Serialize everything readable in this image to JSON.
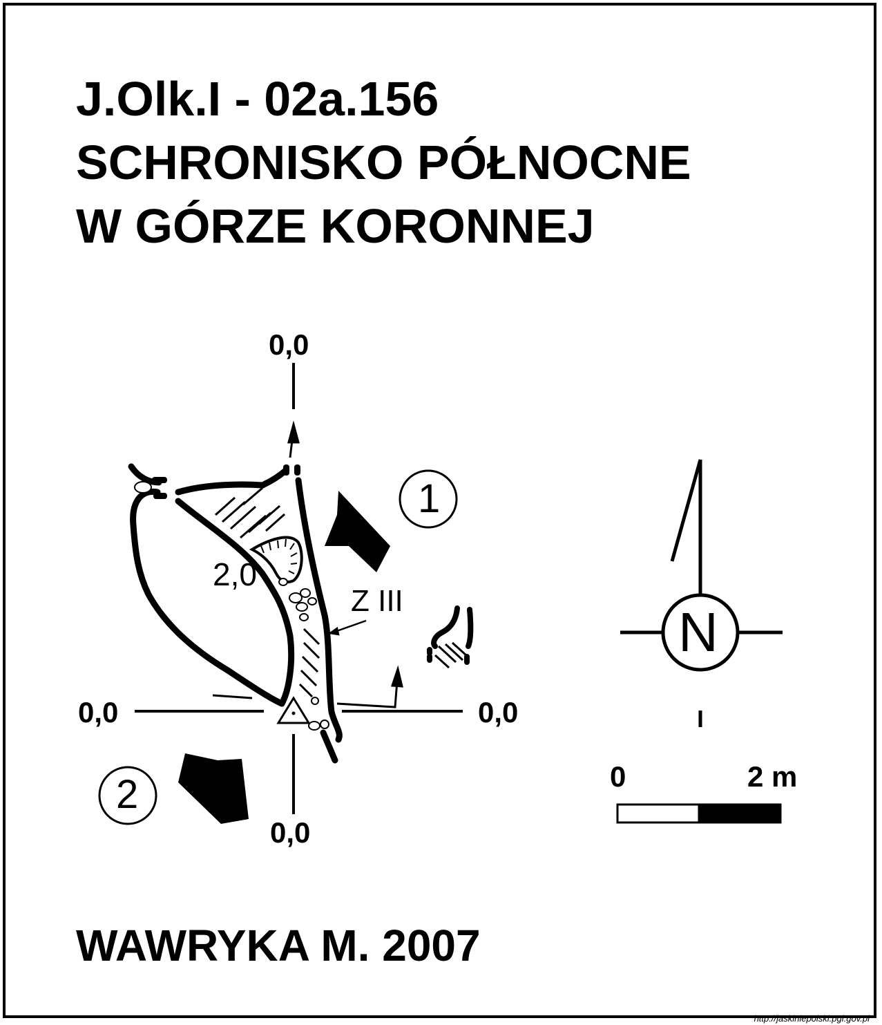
{
  "title": {
    "code": "J.Olk.I - 02a.156",
    "line2": "SCHRONISKO PÓŁNOCNE",
    "line3": "W GÓRZE KORONNEJ"
  },
  "plan": {
    "elevation_top": "0,0",
    "elevation_left": "0,0",
    "elevation_right": "0,0",
    "elevation_bottom": "0,0",
    "elevation_inner": "2,0",
    "rock_label": "Z III",
    "entrance_1": "1",
    "entrance_2": "2"
  },
  "compass": {
    "label": "N"
  },
  "scale_bar": {
    "start": "0",
    "end": "2 m"
  },
  "author": "WAWRYKA M. 2007",
  "source": "http://jaskiniepolski.pgi.gov.pl"
}
